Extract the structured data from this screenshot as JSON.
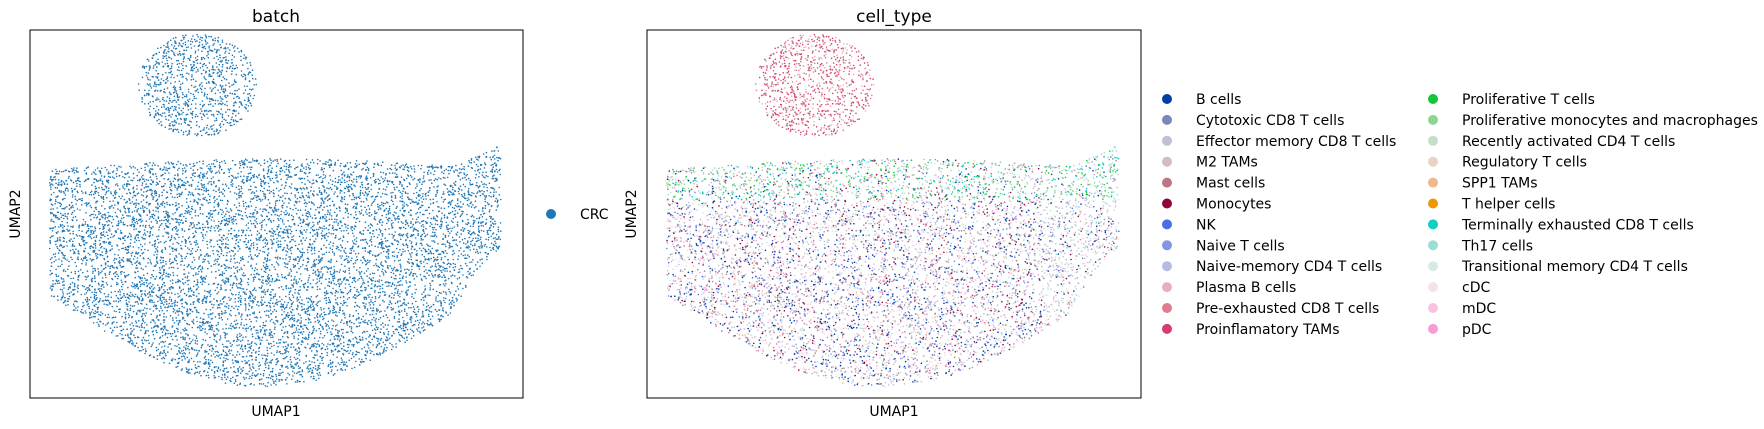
{
  "figure": {
    "panels": [
      {
        "title": "batch",
        "xlabel": "UMAP1",
        "ylabel": "UMAP2"
      },
      {
        "title": "cell_type",
        "xlabel": "UMAP1",
        "ylabel": "UMAP2"
      }
    ]
  },
  "chart_data": [
    {
      "type": "scatter",
      "title": "batch",
      "xlabel": "UMAP1",
      "ylabel": "UMAP2",
      "ticks": "none",
      "grid": false,
      "legend_position": "right",
      "series": [
        {
          "name": "CRC",
          "color": "#1f77b4"
        }
      ]
    },
    {
      "type": "scatter",
      "title": "cell_type",
      "xlabel": "UMAP1",
      "ylabel": "UMAP2",
      "ticks": "none",
      "grid": false,
      "legend_position": "right",
      "legend_columns": 2,
      "series": [
        {
          "name": "B cells",
          "color": "#023fa5"
        },
        {
          "name": "Cytotoxic CD8 T cells",
          "color": "#7d87b9"
        },
        {
          "name": "Effector memory CD8 T cells",
          "color": "#bec1d4"
        },
        {
          "name": "M2 TAMs",
          "color": "#d6bcc0"
        },
        {
          "name": "Mast cells",
          "color": "#bb7784"
        },
        {
          "name": "Monocytes",
          "color": "#8e063b"
        },
        {
          "name": "NK",
          "color": "#4a6fe3"
        },
        {
          "name": "Naive T cells",
          "color": "#8595e1"
        },
        {
          "name": "Naive-memory CD4 T cells",
          "color": "#b5bbe3"
        },
        {
          "name": "Plasma B cells",
          "color": "#e6afb9"
        },
        {
          "name": "Pre-exhausted CD8 T cells",
          "color": "#e07b91"
        },
        {
          "name": "Proinflamatory TAMs",
          "color": "#d33f6a"
        },
        {
          "name": "Proliferative T cells",
          "color": "#11c638"
        },
        {
          "name": "Proliferative monocytes and macrophages",
          "color": "#8dd593"
        },
        {
          "name": "Recently activated CD4 T cells",
          "color": "#c6dec7"
        },
        {
          "name": "Regulatory T cells",
          "color": "#ead3c6"
        },
        {
          "name": "SPP1 TAMs",
          "color": "#f0b98d"
        },
        {
          "name": "T helper cells",
          "color": "#ef9708"
        },
        {
          "name": "Terminally exhausted CD8 T cells",
          "color": "#0fcfc0"
        },
        {
          "name": "Th17 cells",
          "color": "#9cded6"
        },
        {
          "name": "Transitional memory CD4 T cells",
          "color": "#d5eae7"
        },
        {
          "name": "cDC",
          "color": "#f3e1eb"
        },
        {
          "name": "mDC",
          "color": "#f6c4e1"
        },
        {
          "name": "pDC",
          "color": "#f79cd4"
        }
      ]
    }
  ]
}
